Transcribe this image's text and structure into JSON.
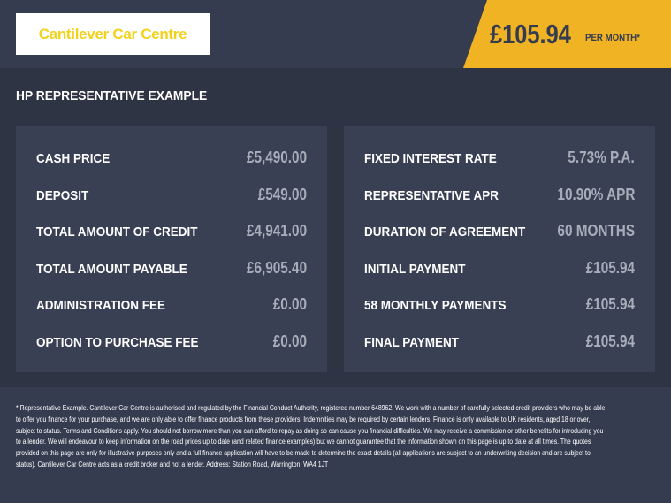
{
  "header": {
    "logo_text": "Cantilever Car Centre",
    "price": "£105.94",
    "per_month": "PER MONTH*",
    "accent": "#f0b323"
  },
  "heading": "HP REPRESENTATIVE EXAMPLE",
  "left": [
    {
      "label": "CASH PRICE",
      "value": "£5,490.00"
    },
    {
      "label": "DEPOSIT",
      "value": "£549.00"
    },
    {
      "label": "TOTAL AMOUNT OF CREDIT",
      "value": "£4,941.00"
    },
    {
      "label": "TOTAL AMOUNT PAYABLE",
      "value": "£6,905.40"
    },
    {
      "label": "ADMINISTRATION FEE",
      "value": "£0.00"
    },
    {
      "label": "OPTION TO PURCHASE FEE",
      "value": "£0.00"
    }
  ],
  "right": [
    {
      "label": "FIXED INTEREST RATE",
      "value": "5.73% P.A."
    },
    {
      "label": "REPRESENTATIVE APR",
      "value": "10.90% APR"
    },
    {
      "label": "DURATION OF AGREEMENT",
      "value": "60 MONTHS"
    },
    {
      "label": "INITIAL PAYMENT",
      "value": "£105.94"
    },
    {
      "label": "58 MONTHLY PAYMENTS",
      "value": "£105.94"
    },
    {
      "label": "FINAL PAYMENT",
      "value": "£105.94"
    }
  ],
  "disclaimer": "* Representative Example. Cantilever Car Centre is authorised and regulated by the Financial Conduct Authority, registered number 648962. We work with a number of carefully selected credit providers who may be able to offer you finance for your purchase, and we are only able to offer finance products from these providers. Indemnities may be required by certain lenders. Finance is only available to UK residents, aged 18 or over, subject to status. Terms and Conditions apply. You should not borrow more than you can afford to repay as doing so can cause you financial difficulties. We may receive a commission or other benefits for introducing you to a lender. We will endeavour to keep information on the road prices up to date (and related finance examples) but we cannot guarantee that the information shown on this page is up to date at all times. The quotes provided on this page are only for illustrative purposes only and a full finance application will have to be made to determine the exact details (all applications are subject to an underwriting decision and are subject to status). Cantilever Car Centre acts as a credit broker and not a lender. Address: Station Road, Warrington, WA4 1JT"
}
